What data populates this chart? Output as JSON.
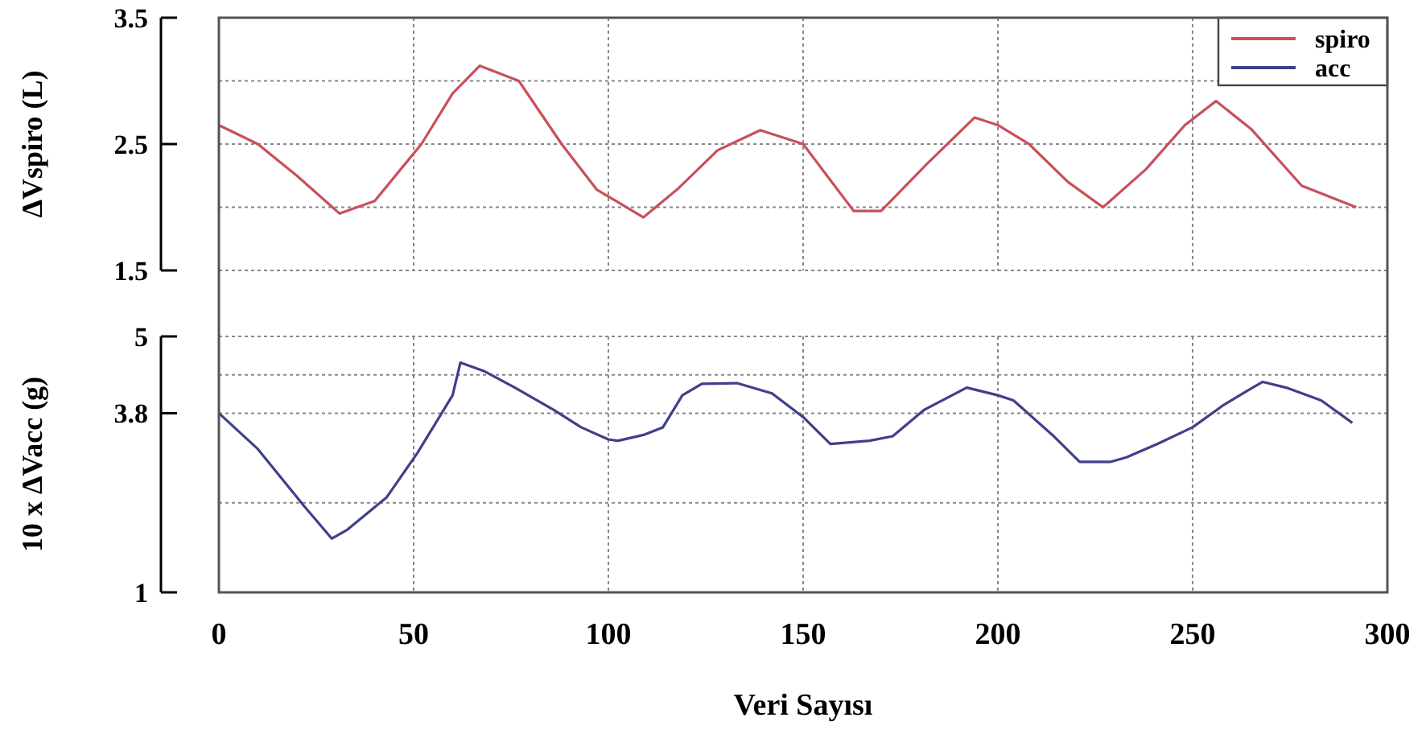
{
  "chart_data": [
    {
      "type": "line",
      "ylabel": "ΔVspiro (L)",
      "xlim": [
        0,
        300
      ],
      "xticks": [
        0,
        50,
        100,
        150,
        200,
        250,
        300
      ],
      "ylim": [
        1.5,
        3.5
      ],
      "yticks": [
        1.5,
        {
          "value": 2,
          "label": null
        },
        2.5,
        {
          "value": 3,
          "label": null
        },
        3.5
      ],
      "grid": true,
      "legend": "top right",
      "tick_labels": "y",
      "series": [
        {
          "name": "spiro",
          "color": "#c8505a",
          "x": [
            0,
            10,
            20,
            31,
            40,
            52,
            60,
            67,
            77,
            88,
            97,
            109,
            118,
            128,
            139,
            150,
            163,
            170,
            182,
            194,
            200,
            208,
            218,
            227,
            238,
            248,
            256,
            265,
            278,
            292
          ],
          "values": [
            2.65,
            2.5,
            2.25,
            1.95,
            2.05,
            2.5,
            2.9,
            3.12,
            3.0,
            2.5,
            2.14,
            1.92,
            2.15,
            2.45,
            2.61,
            2.5,
            1.97,
            1.97,
            2.35,
            2.71,
            2.65,
            2.5,
            2.2,
            2.0,
            2.3,
            2.65,
            2.84,
            2.62,
            2.17,
            2.0
          ]
        }
      ]
    },
    {
      "type": "line",
      "ylabel": "10 x ΔVacc (g)",
      "xlabel": "Veri Sayısı",
      "xlim": [
        0,
        300
      ],
      "xticks": [
        0,
        50,
        100,
        150,
        200,
        250,
        300
      ],
      "ylim": [
        1,
        5
      ],
      "yticks": [
        1,
        {
          "value": 2.4,
          "label": null
        },
        3.8,
        {
          "value": 4.4,
          "label": null
        },
        5
      ],
      "grid": true,
      "series": [
        {
          "name": "acc",
          "color": "#40408a",
          "x": [
            0,
            10,
            22,
            29,
            33,
            43,
            51,
            60,
            62,
            68,
            76,
            86,
            93,
            100,
            102.5,
            109,
            114,
            119,
            124,
            133,
            142,
            150,
            157,
            167,
            173,
            181,
            192,
            200,
            204,
            214,
            221,
            229,
            233,
            241,
            250,
            258,
            264,
            268,
            274,
            283,
            291
          ],
          "values": [
            3.8,
            3.24,
            2.34,
            1.84,
            1.98,
            2.48,
            3.18,
            4.08,
            4.59,
            4.46,
            4.2,
            3.85,
            3.58,
            3.39,
            3.37,
            3.46,
            3.58,
            4.08,
            4.26,
            4.27,
            4.11,
            3.74,
            3.32,
            3.37,
            3.44,
            3.85,
            4.2,
            4.08,
            4.0,
            3.46,
            3.04,
            3.04,
            3.11,
            3.32,
            3.58,
            3.93,
            4.15,
            4.29,
            4.2,
            4.0,
            3.65
          ]
        }
      ]
    }
  ]
}
